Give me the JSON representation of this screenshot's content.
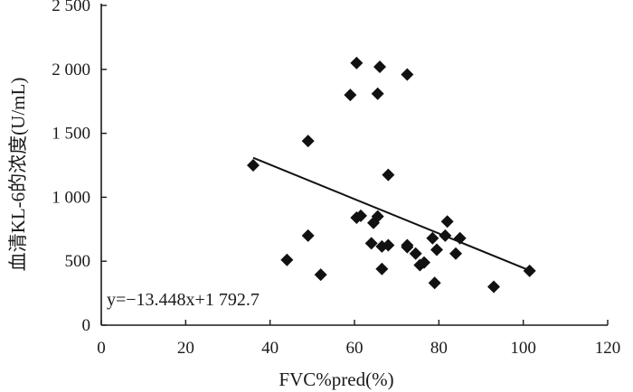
{
  "chart_data": {
    "type": "scatter",
    "title": "",
    "xlabel": "FVC%pred(%)",
    "ylabel": "血清KL-6的浓度(U/mL)",
    "xlim": [
      0,
      120
    ],
    "ylim": [
      0,
      2500
    ],
    "x_ticks": [
      0,
      20,
      40,
      60,
      80,
      100,
      120
    ],
    "x_tick_labels": [
      "0",
      "20",
      "40",
      "60",
      "80",
      "100",
      "120"
    ],
    "y_ticks": [
      0,
      500,
      1000,
      1500,
      2000,
      2500
    ],
    "y_tick_labels": [
      "0",
      "500",
      "1 000",
      "1 500",
      "2 000",
      "2 500"
    ],
    "grid": false,
    "series": [
      {
        "points": [
          [
            36,
            1250
          ],
          [
            44,
            510
          ],
          [
            49,
            1440
          ],
          [
            49,
            700
          ],
          [
            52,
            395
          ],
          [
            59,
            1800
          ],
          [
            60.5,
            2050
          ],
          [
            60.5,
            840
          ],
          [
            61.5,
            855
          ],
          [
            64,
            640
          ],
          [
            64.5,
            800
          ],
          [
            65.5,
            1810
          ],
          [
            65.5,
            850
          ],
          [
            66,
            2020
          ],
          [
            66.5,
            440
          ],
          [
            66.5,
            615
          ],
          [
            68,
            1175
          ],
          [
            68,
            625
          ],
          [
            72.5,
            1960
          ],
          [
            72.5,
            625
          ],
          [
            72.5,
            610
          ],
          [
            74.5,
            560
          ],
          [
            75.5,
            470
          ],
          [
            76.5,
            490
          ],
          [
            78.5,
            680
          ],
          [
            79,
            330
          ],
          [
            79.5,
            590
          ],
          [
            81.5,
            700
          ],
          [
            82,
            810
          ],
          [
            84,
            560
          ],
          [
            85,
            680
          ],
          [
            93,
            300
          ],
          [
            101.5,
            425
          ]
        ]
      }
    ],
    "trendline": {
      "equation": "y=−13.448x+1 792.7",
      "slope": -13.448,
      "intercept": 1792.7,
      "x_range": [
        36,
        101.5
      ]
    }
  }
}
